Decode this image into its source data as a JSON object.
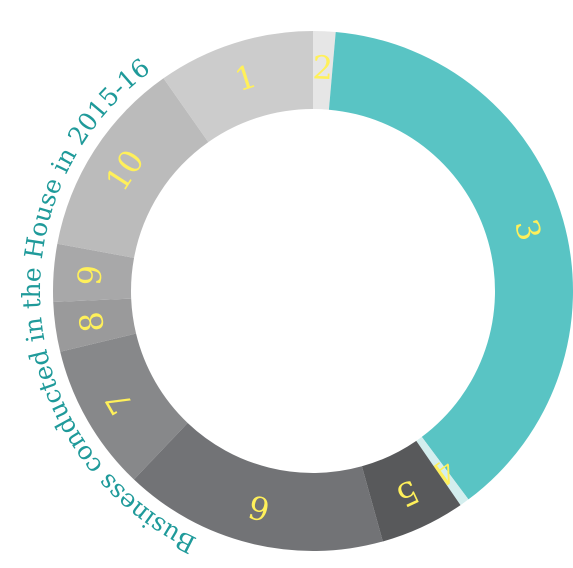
{
  "chart_data": {
    "type": "donut",
    "title": "Business conducted in the House in 2015-16",
    "categories": [
      "1",
      "2",
      "3",
      "4",
      "5",
      "6",
      "7",
      "8",
      "9",
      "10"
    ],
    "values": [
      9.8,
      1.4,
      38.6,
      0.6,
      5.3,
      16.5,
      9.2,
      3.1,
      3.6,
      12.4
    ],
    "colors": [
      "#cccccc",
      "#e6e6e6",
      "#59c4c4",
      "#d4eeee",
      "#58595b",
      "#727376",
      "#87888a",
      "#9a9a9b",
      "#a8a8a9",
      "#bbbbbb"
    ],
    "start_category": 1
  }
}
